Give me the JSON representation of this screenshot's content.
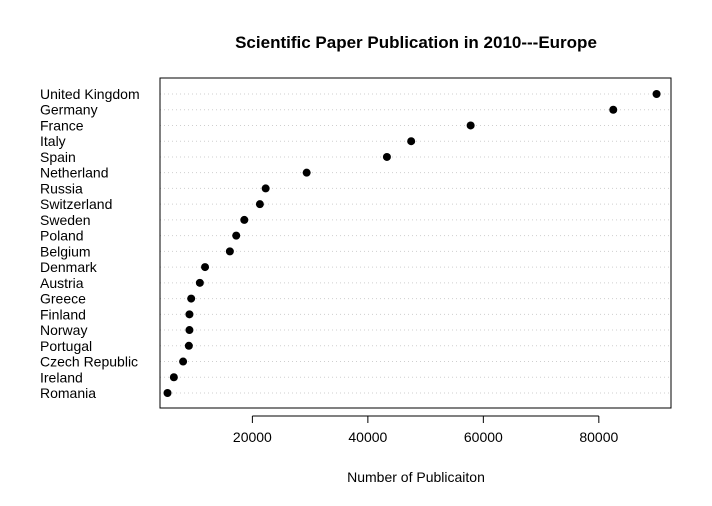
{
  "chart_data": {
    "type": "scatter",
    "title": "Scientific Paper Publication in 2010---Europe",
    "xlabel": "Number of Publicaiton",
    "ylabel": "",
    "xlim": [
      4000,
      92500
    ],
    "x_ticks": [
      20000,
      40000,
      60000,
      80000
    ],
    "x_tick_labels": [
      "20000",
      "40000",
      "60000",
      "80000"
    ],
    "grid": "horizontal dotted",
    "categories": [
      "United Kingdom",
      "Germany",
      "France",
      "Italy",
      "Spain",
      "Netherland",
      "Russia",
      "Switzerland",
      "Sweden",
      "Poland",
      "Belgium",
      "Denmark",
      "Austria",
      "Greece",
      "Finland",
      "Norway",
      "Portugal",
      "Czech Republic",
      "Ireland",
      "Romania"
    ],
    "values": [
      90000,
      82500,
      57800,
      47500,
      43300,
      29400,
      22300,
      21300,
      18600,
      17200,
      16100,
      11800,
      10900,
      9400,
      9100,
      9100,
      9000,
      8000,
      6400,
      5300
    ]
  }
}
